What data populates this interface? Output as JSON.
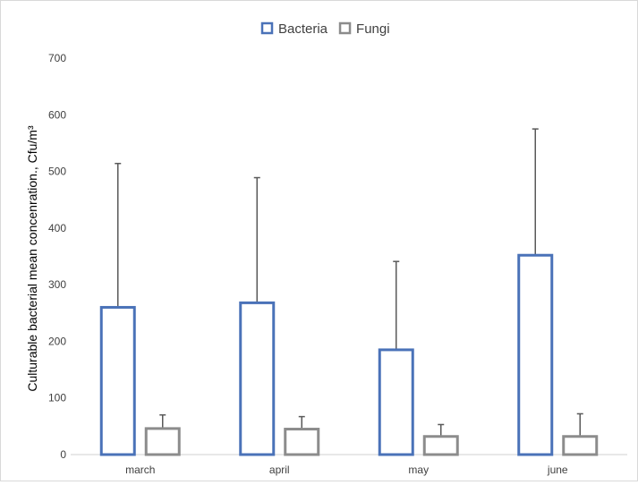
{
  "chart_data": {
    "type": "bar",
    "title": "",
    "xlabel": "",
    "ylabel": "Culturable bacterial mean concenration., Cfu/m³",
    "categories": [
      "march",
      "april",
      "may",
      "june"
    ],
    "ylim": [
      0,
      700
    ],
    "yticks": [
      0,
      100,
      200,
      300,
      400,
      500,
      600,
      700
    ],
    "grid": false,
    "legend": "top-center",
    "style": "outlined bars with upper error bars",
    "series": [
      {
        "name": "Bacteria",
        "color": "#4a72b8",
        "values": [
          260,
          268,
          185,
          352
        ],
        "error_upper": [
          514,
          489,
          341,
          575
        ]
      },
      {
        "name": "Fungi",
        "color": "#8c8c8c",
        "values": [
          46,
          45,
          32,
          32
        ],
        "error_upper": [
          70,
          67,
          53,
          72
        ]
      }
    ],
    "error_bar_color": "#595959"
  }
}
